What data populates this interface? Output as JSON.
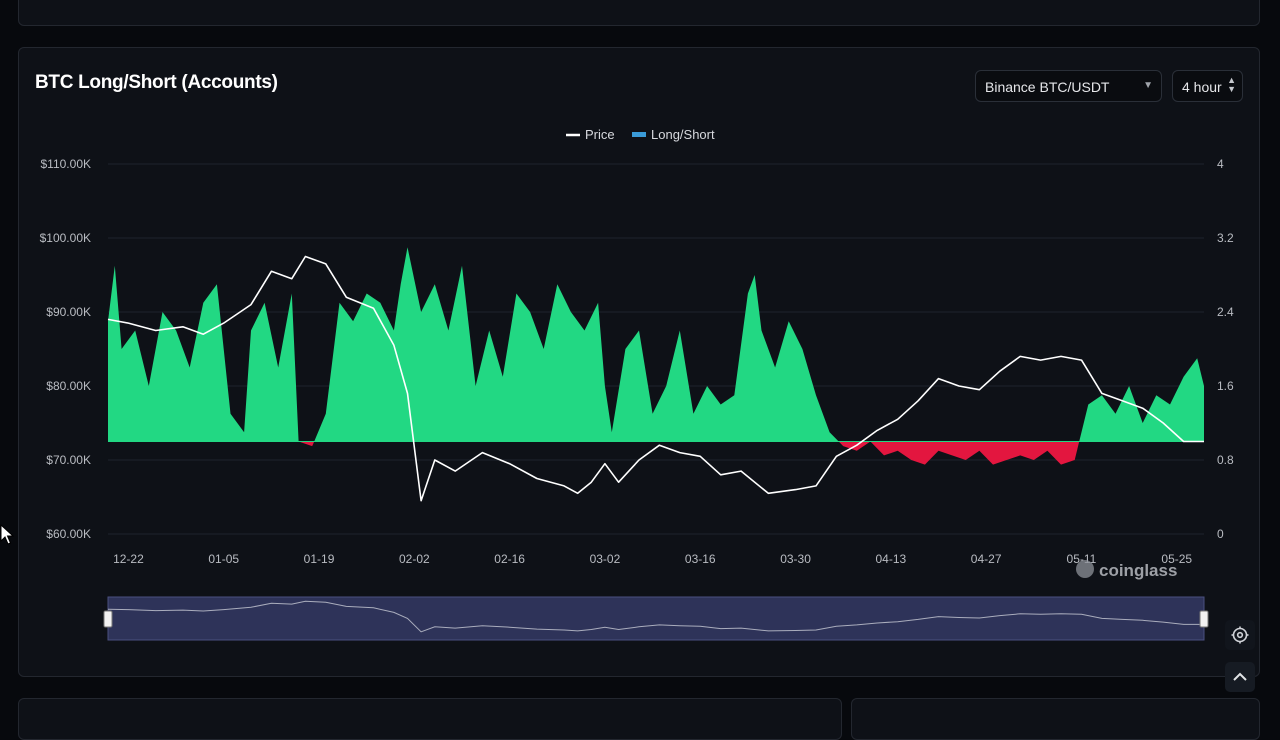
{
  "card": {
    "title": "BTC Long/Short (Accounts)",
    "pair_select": "Binance BTC/USDT",
    "interval_select": "4 hour"
  },
  "colors": {
    "positive": "#22d883",
    "negative": "#e3163f",
    "price": "#ffffff",
    "navigator": "#2e3359",
    "background": "#0e1117"
  },
  "watermark": "coinglass",
  "icons": {
    "settings": "settings-icon",
    "scroll_top": "chevron-up-icon",
    "pointer": "cursor-icon"
  },
  "chart_data": {
    "type": "area",
    "legend": [
      "Price",
      "Long/Short"
    ],
    "legend_position": "top-center",
    "x_tick_labels": [
      "12-22",
      "01-05",
      "01-19",
      "02-02",
      "02-16",
      "03-02",
      "03-16",
      "03-30",
      "04-13",
      "04-27",
      "05-11",
      "05-25"
    ],
    "y_left": {
      "ticks": [
        "$60.00K",
        "$70.00K",
        "$80.00K",
        "$90.00K",
        "$100.00K",
        "$110.00K"
      ],
      "range": [
        60000,
        110000
      ]
    },
    "y_right": {
      "ticks": [
        "0",
        "0.8",
        "1.6",
        "2.4",
        "3.2",
        "4"
      ],
      "range": [
        0,
        4
      ]
    },
    "baseline": 1.0,
    "grid": true,
    "series": [
      {
        "name": "Price",
        "x": [
          "12-19",
          "12-22",
          "12-26",
          "12-30",
          "01-02",
          "01-05",
          "01-09",
          "01-12",
          "01-15",
          "01-17",
          "01-20",
          "01-23",
          "01-27",
          "01-30",
          "02-01",
          "02-03",
          "02-05",
          "02-08",
          "02-12",
          "02-16",
          "02-20",
          "02-24",
          "02-26",
          "02-28",
          "03-02",
          "03-04",
          "03-07",
          "03-10",
          "03-13",
          "03-16",
          "03-19",
          "03-22",
          "03-26",
          "03-30",
          "04-02",
          "04-05",
          "04-08",
          "04-11",
          "04-14",
          "04-17",
          "04-20",
          "04-23",
          "04-26",
          "04-29",
          "05-02",
          "05-05",
          "05-08",
          "05-11",
          "05-14",
          "05-17",
          "05-20",
          "05-23",
          "05-26",
          "05-29"
        ],
        "values": [
          89000,
          88500,
          87500,
          88000,
          87000,
          88500,
          91000,
          95500,
          94500,
          97500,
          96500,
          92000,
          90500,
          85500,
          79000,
          64500,
          70000,
          68500,
          71000,
          69500,
          67500,
          66500,
          65500,
          67000,
          69500,
          67000,
          70000,
          72000,
          71000,
          70500,
          68000,
          68500,
          65500,
          66000,
          66500,
          70500,
          72000,
          74000,
          75500,
          78000,
          81000,
          80000,
          79500,
          82000,
          84000,
          83500,
          84000,
          83500,
          79000,
          78000,
          77000,
          75000,
          72500,
          72500
        ]
      },
      {
        "name": "Long/Short",
        "x": [
          "12-19",
          "12-20",
          "12-21",
          "12-23",
          "12-25",
          "12-27",
          "12-29",
          "12-31",
          "01-02",
          "01-04",
          "01-06",
          "01-08",
          "01-09",
          "01-11",
          "01-13",
          "01-15",
          "01-16",
          "01-18",
          "01-20",
          "01-22",
          "01-24",
          "01-26",
          "01-28",
          "01-30",
          "01-31",
          "02-01",
          "02-03",
          "02-05",
          "02-07",
          "02-09",
          "02-11",
          "02-13",
          "02-15",
          "02-17",
          "02-19",
          "02-21",
          "02-23",
          "02-25",
          "02-27",
          "03-01",
          "03-02",
          "03-03",
          "03-05",
          "03-07",
          "03-09",
          "03-11",
          "03-13",
          "03-15",
          "03-17",
          "03-19",
          "03-21",
          "03-23",
          "03-24",
          "03-25",
          "03-26",
          "03-27",
          "03-29",
          "03-31",
          "04-02",
          "04-04",
          "04-06",
          "04-08",
          "04-10",
          "04-12",
          "04-14",
          "04-16",
          "04-18",
          "04-20",
          "04-22",
          "04-24",
          "04-26",
          "04-28",
          "04-30",
          "05-02",
          "05-04",
          "05-06",
          "05-08",
          "05-10",
          "05-12",
          "05-14",
          "05-16",
          "05-18",
          "05-20",
          "05-22",
          "05-24",
          "05-26",
          "05-28",
          "05-29"
        ],
        "values": [
          2.3,
          2.9,
          2.0,
          2.2,
          1.6,
          2.4,
          2.2,
          1.8,
          2.5,
          2.7,
          1.3,
          1.1,
          2.2,
          2.5,
          1.8,
          2.6,
          1.0,
          0.95,
          1.3,
          2.5,
          2.3,
          2.6,
          2.5,
          2.2,
          2.7,
          3.1,
          2.4,
          2.7,
          2.2,
          2.9,
          1.6,
          2.2,
          1.7,
          2.6,
          2.4,
          2.0,
          2.7,
          2.4,
          2.2,
          2.5,
          1.6,
          1.1,
          2.0,
          2.2,
          1.3,
          1.6,
          2.2,
          1.3,
          1.6,
          1.4,
          1.5,
          2.6,
          2.8,
          2.2,
          2.0,
          1.8,
          2.3,
          2.0,
          1.5,
          1.1,
          0.95,
          0.9,
          1.0,
          0.85,
          0.9,
          0.8,
          0.75,
          0.9,
          0.85,
          0.8,
          0.9,
          0.75,
          0.8,
          0.85,
          0.8,
          0.9,
          0.75,
          0.8,
          1.4,
          1.5,
          1.3,
          1.6,
          1.2,
          1.5,
          1.4,
          1.7,
          1.9,
          1.6
        ]
      }
    ]
  }
}
